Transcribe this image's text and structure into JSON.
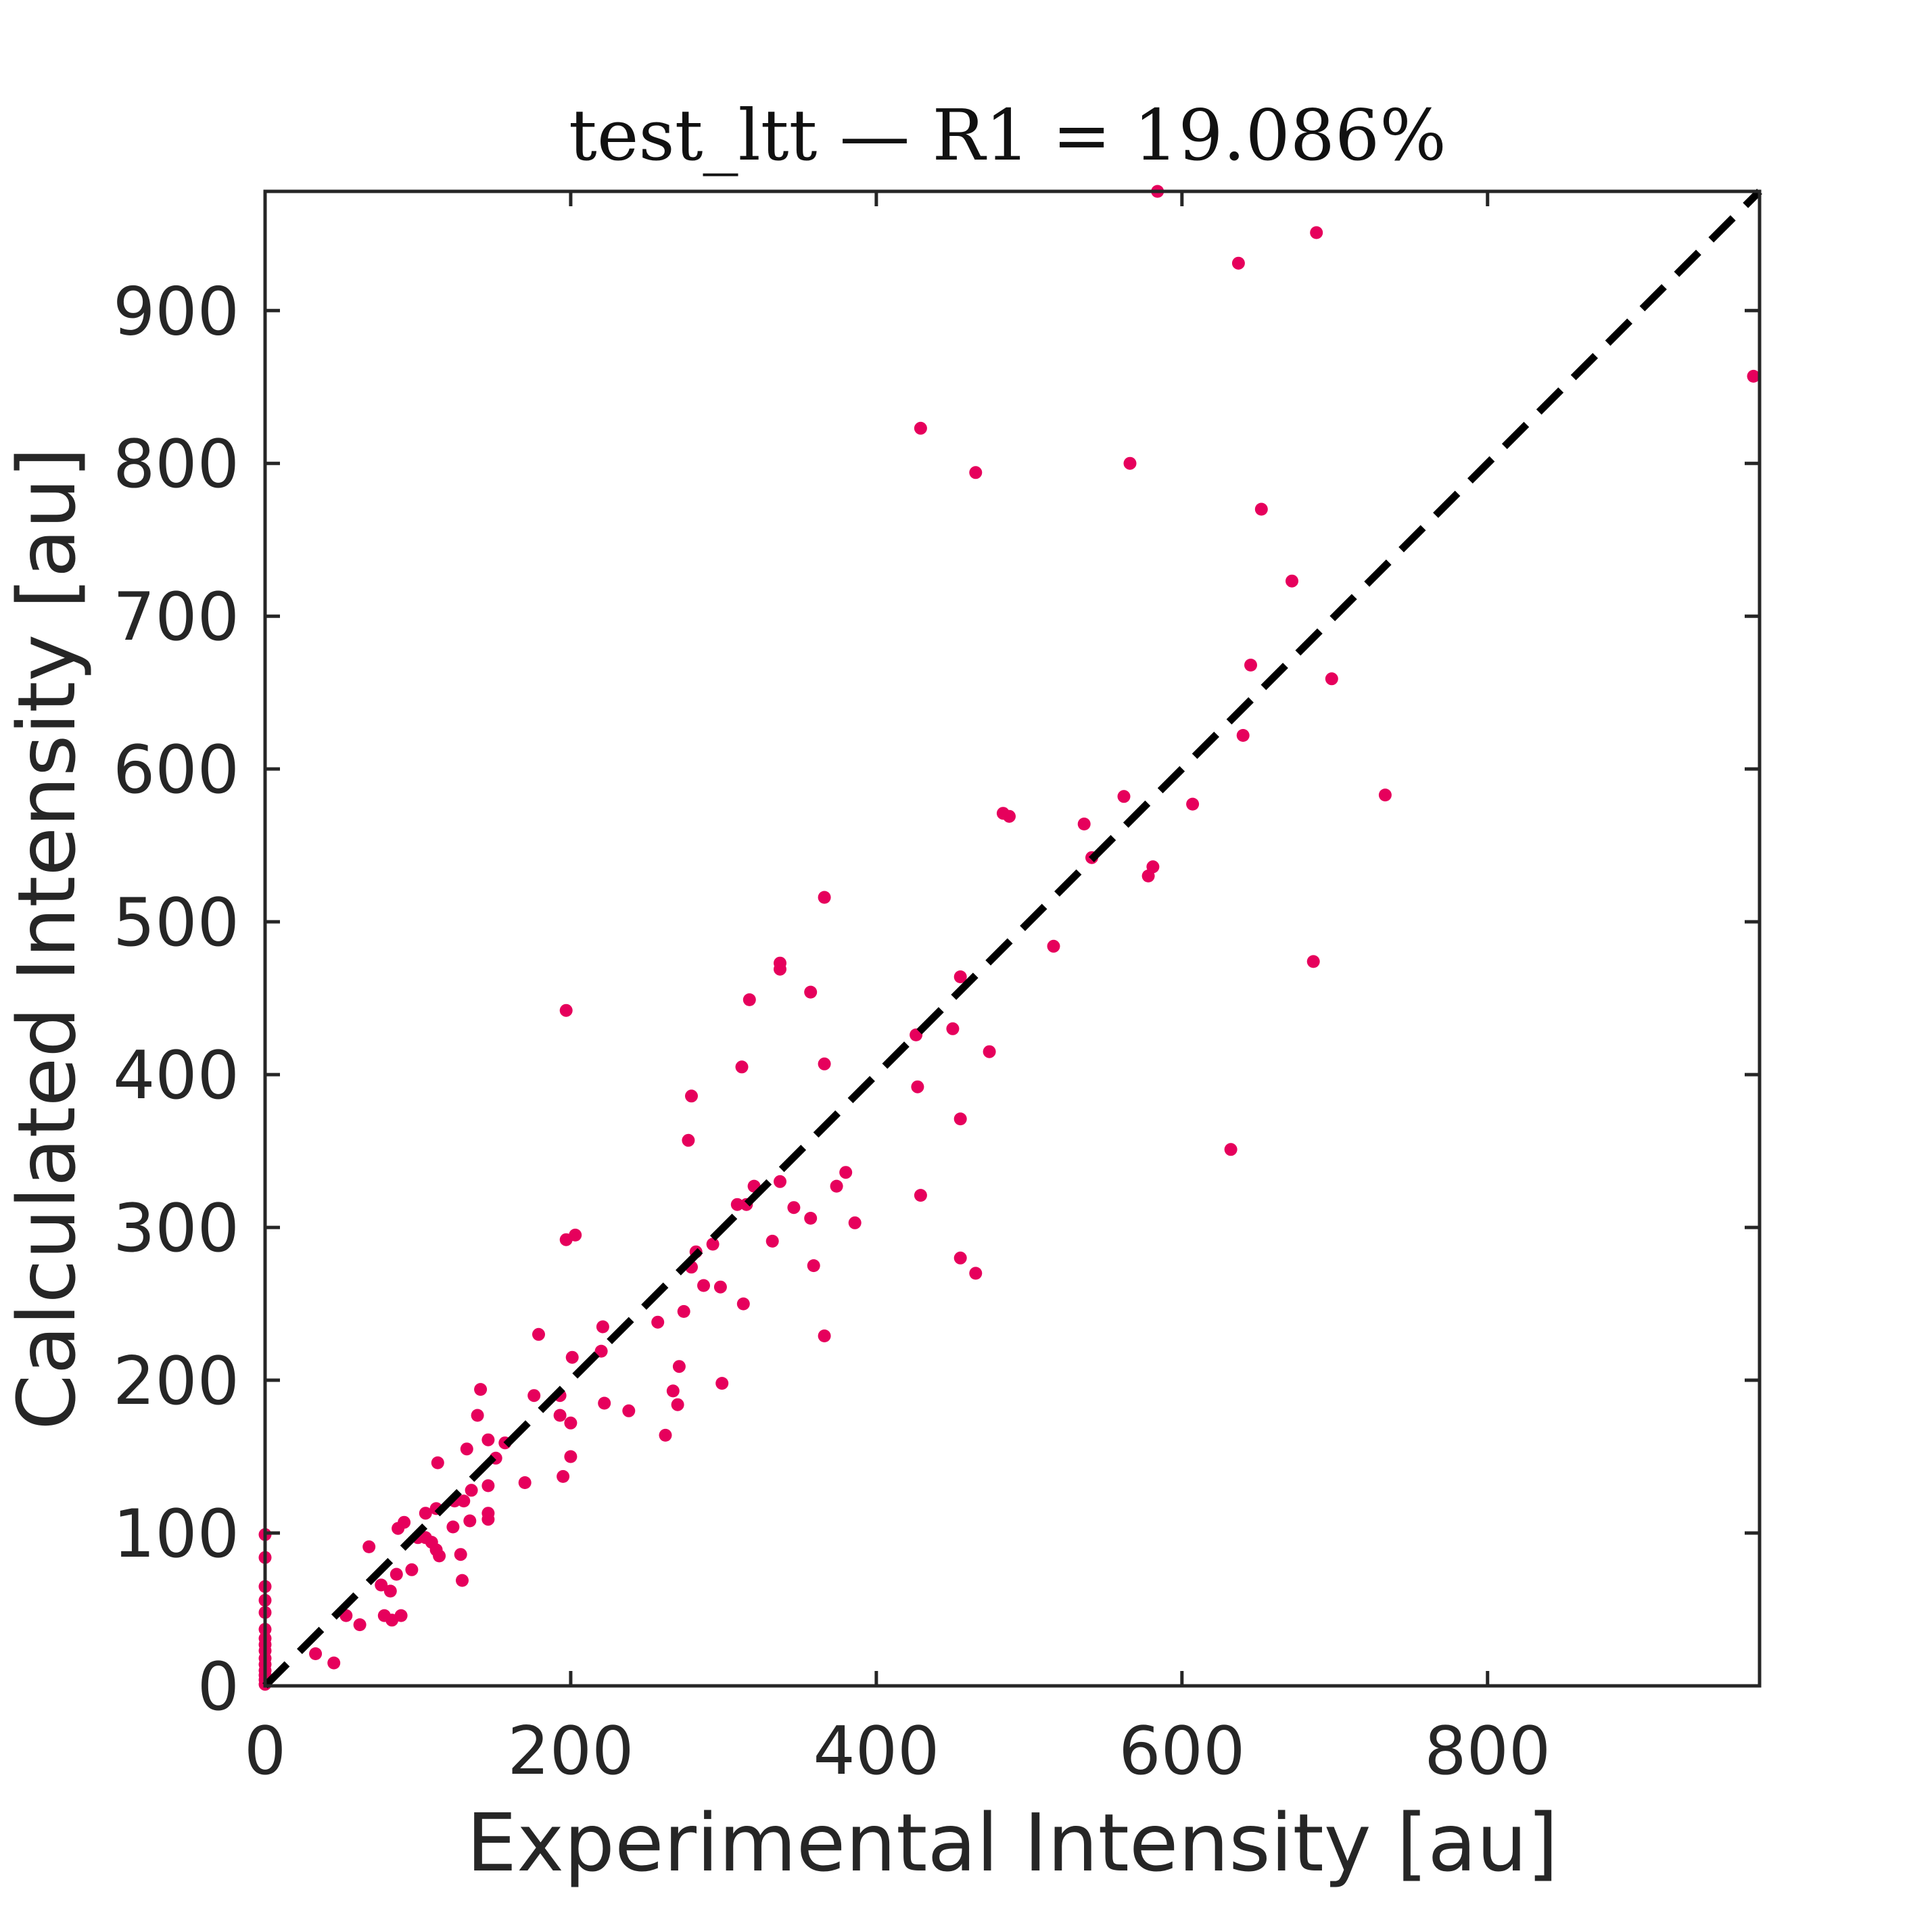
{
  "chart_data": {
    "type": "scatter",
    "title": "test_ltt — R1 = 19.086%",
    "xlabel": "Experimental Intensity [au]",
    "ylabel": "Calculated Intensity [au]",
    "xlim": [
      0,
      978
    ],
    "ylim": [
      0,
      978
    ],
    "xticks": [
      0,
      200,
      400,
      600,
      800
    ],
    "yticks": [
      0,
      100,
      200,
      300,
      400,
      500,
      600,
      700,
      800,
      900
    ],
    "grid": false,
    "legend": "none",
    "colors": {
      "points": "#e6005c",
      "reference_line": "#000000",
      "axes": "#262626"
    },
    "reference_line": {
      "style": "dashed",
      "from": [
        0,
        0
      ],
      "to": [
        978,
        978
      ]
    },
    "points": [
      [
        584,
        978
      ],
      [
        688,
        951
      ],
      [
        637,
        931
      ],
      [
        974,
        857
      ],
      [
        429,
        823
      ],
      [
        465,
        794
      ],
      [
        566,
        800
      ],
      [
        652,
        770
      ],
      [
        672,
        723
      ],
      [
        645,
        668
      ],
      [
        698,
        659
      ],
      [
        640,
        622
      ],
      [
        733,
        583
      ],
      [
        607,
        577
      ],
      [
        562,
        582
      ],
      [
        483,
        571
      ],
      [
        487,
        569
      ],
      [
        536,
        564
      ],
      [
        541,
        542
      ],
      [
        581,
        536
      ],
      [
        578,
        530
      ],
      [
        366,
        516
      ],
      [
        516,
        484
      ],
      [
        686,
        474
      ],
      [
        337,
        473
      ],
      [
        337,
        469
      ],
      [
        455,
        464
      ],
      [
        357,
        454
      ],
      [
        317,
        449
      ],
      [
        197,
        442
      ],
      [
        450,
        430
      ],
      [
        426,
        426
      ],
      [
        474,
        415
      ],
      [
        366,
        407
      ],
      [
        312,
        405
      ],
      [
        427,
        392
      ],
      [
        279,
        386
      ],
      [
        455,
        371
      ],
      [
        277,
        357
      ],
      [
        632,
        351
      ],
      [
        380,
        336
      ],
      [
        374,
        327
      ],
      [
        337,
        330
      ],
      [
        320,
        327
      ],
      [
        429,
        321
      ],
      [
        309,
        315
      ],
      [
        315,
        315
      ],
      [
        346,
        313
      ],
      [
        357,
        306
      ],
      [
        386,
        303
      ],
      [
        203,
        295
      ],
      [
        197,
        292
      ],
      [
        332,
        291
      ],
      [
        293,
        289
      ],
      [
        282,
        284
      ],
      [
        455,
        280
      ],
      [
        359,
        275
      ],
      [
        279,
        274
      ],
      [
        465,
        270
      ],
      [
        287,
        262
      ],
      [
        298,
        261
      ],
      [
        313,
        250
      ],
      [
        274,
        245
      ],
      [
        257,
        238
      ],
      [
        221,
        235
      ],
      [
        366,
        229
      ],
      [
        179,
        230
      ],
      [
        220,
        219
      ],
      [
        201,
        215
      ],
      [
        271,
        209
      ],
      [
        299,
        198
      ],
      [
        141,
        194
      ],
      [
        267,
        193
      ],
      [
        176,
        190
      ],
      [
        193,
        190
      ],
      [
        222,
        185
      ],
      [
        270,
        184
      ],
      [
        238,
        180
      ],
      [
        193,
        177
      ],
      [
        139,
        177
      ],
      [
        200,
        172
      ],
      [
        262,
        164
      ],
      [
        146,
        161
      ],
      [
        157,
        159
      ],
      [
        132,
        155
      ],
      [
        200,
        150
      ],
      [
        151,
        149
      ],
      [
        113,
        146
      ],
      [
        195,
        137
      ],
      [
        170,
        133
      ],
      [
        146,
        131
      ],
      [
        135,
        128
      ],
      [
        124,
        121
      ],
      [
        130,
        121
      ],
      [
        146,
        113
      ],
      [
        146,
        109
      ],
      [
        112,
        116
      ],
      [
        105,
        113
      ],
      [
        134,
        108
      ],
      [
        123,
        104
      ],
      [
        91,
        107
      ],
      [
        87,
        103
      ],
      [
        100,
        97
      ],
      [
        112,
        89
      ],
      [
        109,
        94
      ],
      [
        105,
        97
      ],
      [
        68,
        91
      ],
      [
        128,
        86
      ],
      [
        114,
        85
      ],
      [
        96,
        76
      ],
      [
        86,
        73
      ],
      [
        129,
        69
      ],
      [
        76,
        66
      ],
      [
        82,
        62
      ],
      [
        53,
        46
      ],
      [
        78,
        46
      ],
      [
        89,
        46
      ],
      [
        83,
        43
      ],
      [
        62,
        40
      ],
      [
        33,
        21
      ],
      [
        45,
        15
      ],
      [
        0,
        99
      ],
      [
        0,
        84
      ],
      [
        0,
        65
      ],
      [
        0,
        56
      ],
      [
        0,
        48
      ],
      [
        0,
        37
      ],
      [
        0,
        31
      ],
      [
        0,
        27
      ],
      [
        0,
        23
      ],
      [
        0,
        18
      ],
      [
        0,
        14
      ],
      [
        0,
        10
      ],
      [
        0,
        7
      ],
      [
        0,
        4
      ],
      [
        0,
        1
      ]
    ]
  }
}
